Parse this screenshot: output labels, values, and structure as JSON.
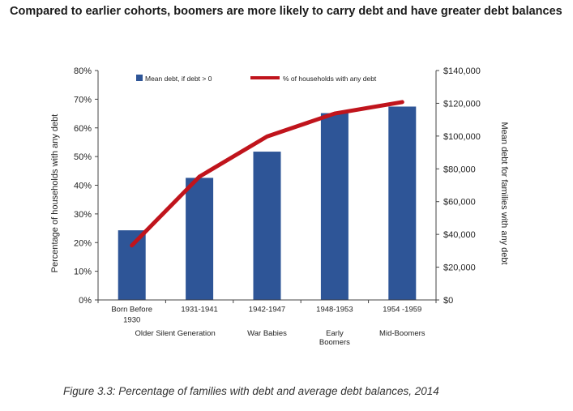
{
  "title": "Compared to earlier cohorts, boomers are more likely to carry debt and have greater debt balances",
  "caption": "Figure 3.3: Percentage of families with debt and average debt balances, 2014",
  "colors": {
    "bar": "#2e5597",
    "line": "#c0141c",
    "axis": "#444444"
  },
  "chart_data": {
    "type": "bar",
    "categories": [
      [
        "Born Before",
        "1930"
      ],
      [
        "1931-1941"
      ],
      [
        "1942-1947"
      ],
      [
        "1948-1953"
      ],
      [
        "1954 -1959"
      ]
    ],
    "generation_labels": [
      [
        "Older Silent Generation"
      ],
      [
        "War Babies"
      ],
      [
        "Early",
        "Boomers"
      ],
      [
        "Mid-Boomers"
      ]
    ],
    "series": [
      {
        "name": "Mean debt, if debt > 0",
        "type": "bar",
        "axis": "right",
        "values": [
          42500,
          74500,
          90500,
          114000,
          118000
        ]
      },
      {
        "name": "% of households with any debt",
        "type": "line",
        "axis": "left",
        "values": [
          19,
          43,
          57,
          65,
          69
        ]
      }
    ],
    "y_left": {
      "label": "Percentage of households with any debt",
      "min": 0,
      "max": 80,
      "step": 10,
      "ticks": [
        "0%",
        "10%",
        "20%",
        "30%",
        "40%",
        "50%",
        "60%",
        "70%",
        "80%"
      ]
    },
    "y_right": {
      "label": "Mean debt for families with any debt",
      "min": 0,
      "max": 140000,
      "step": 20000,
      "ticks": [
        "$0",
        "$20,000",
        "$40,000",
        "$60,000",
        "$80,000",
        "$100,000",
        "$120,000",
        "$140,000"
      ]
    },
    "legend_position": "top",
    "grid": false
  }
}
